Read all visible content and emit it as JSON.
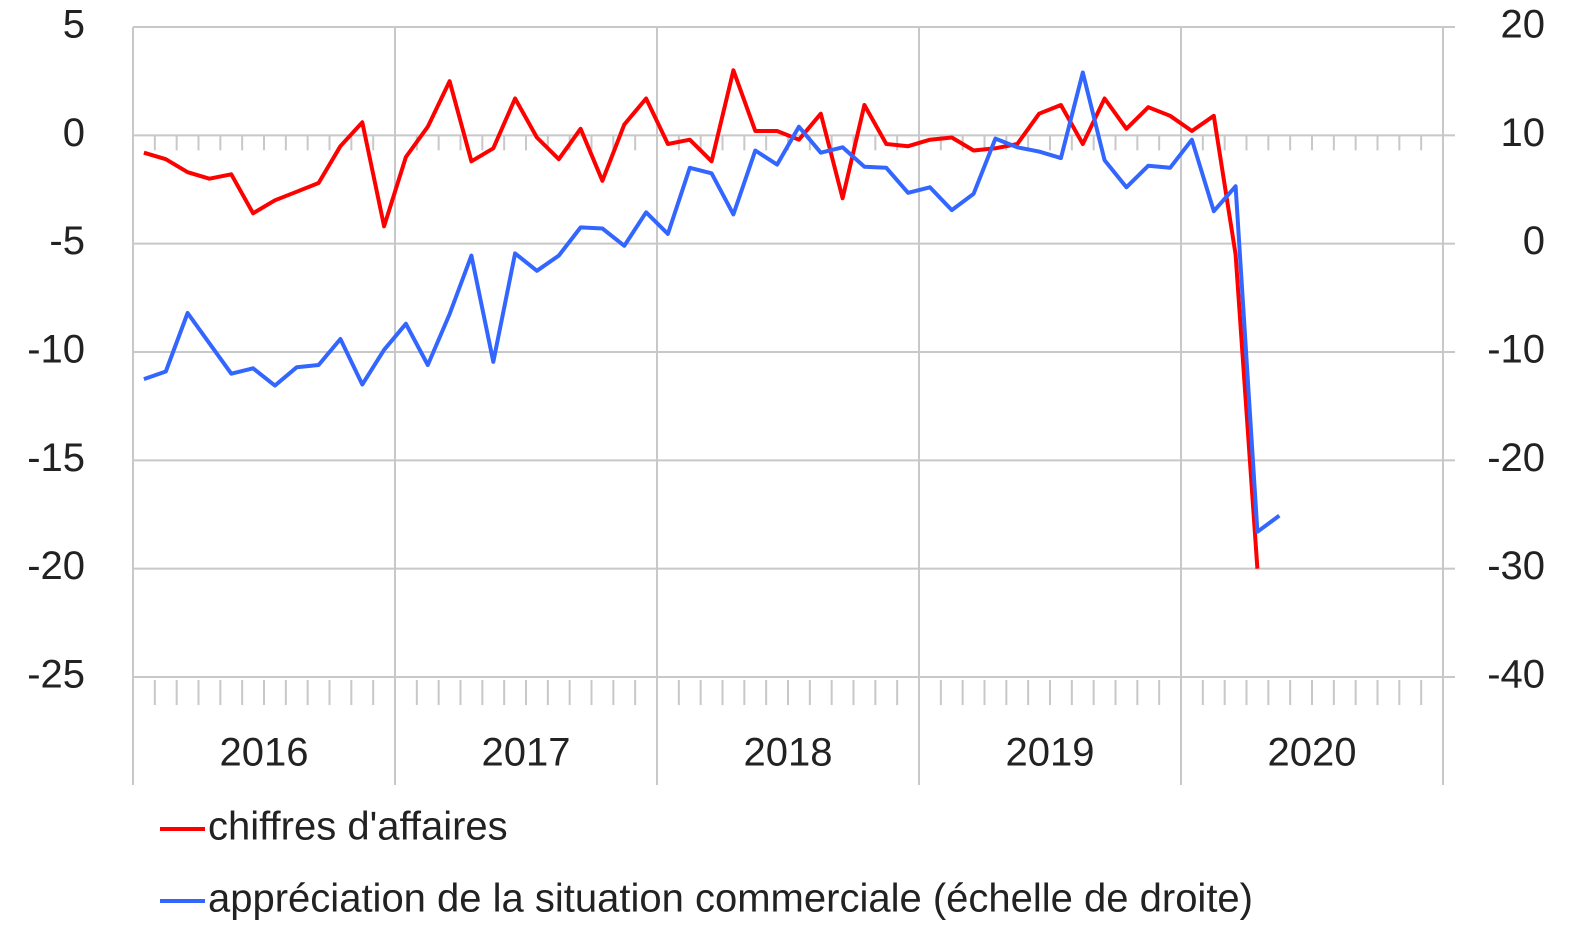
{
  "chart_data": {
    "type": "line",
    "categories": [
      null,
      null,
      null,
      null,
      null,
      null,
      "2016",
      null,
      null,
      null,
      null,
      null,
      null,
      null,
      null,
      null,
      null,
      null,
      "2017",
      null,
      null,
      null,
      null,
      null,
      null,
      null,
      null,
      null,
      null,
      null,
      "2018",
      null,
      null,
      null,
      null,
      null,
      null,
      null,
      null,
      null,
      null,
      null,
      "2019",
      null,
      null,
      null,
      null,
      null,
      null,
      null,
      null,
      null,
      null,
      null,
      "2020",
      null,
      null,
      null,
      null,
      null
    ],
    "series": [
      {
        "name": "chiffres d'affaires",
        "color": "#ff0000",
        "axis": "y",
        "values": [
          -0.8,
          -1.1,
          -1.7,
          -2.0,
          -1.8,
          -3.6,
          -3.0,
          -2.6,
          -2.2,
          -0.5,
          0.6,
          -4.2,
          -1.0,
          0.4,
          2.5,
          -1.2,
          -0.6,
          1.7,
          -0.1,
          -1.1,
          0.3,
          -2.1,
          0.5,
          1.7,
          -0.4,
          -0.2,
          -1.2,
          3.0,
          0.2,
          0.2,
          -0.2,
          1.0,
          -2.9,
          1.4,
          -0.4,
          -0.5,
          -0.2,
          -0.1,
          -0.7,
          -0.6,
          -0.4,
          1.0,
          1.4,
          -0.4,
          1.7,
          0.3,
          1.3,
          0.9,
          0.2,
          0.9,
          -5.5,
          -20,
          null,
          null,
          null,
          null,
          null,
          null,
          null,
          null
        ]
      },
      {
        "name": "appréciation de la situation commerciale (échelle de droite)",
        "color": "#3366ff",
        "axis": "y2",
        "values": [
          -12.5,
          -11.8,
          -6.4,
          -9.2,
          -12.0,
          -11.5,
          -13.1,
          -11.4,
          -11.2,
          -8.8,
          -13.0,
          -9.8,
          -7.4,
          -11.2,
          -6.5,
          -1.1,
          -10.9,
          -0.9,
          -2.5,
          -1.1,
          1.5,
          1.4,
          -0.2,
          2.9,
          0.9,
          7.0,
          6.5,
          2.7,
          8.6,
          7.3,
          10.8,
          8.4,
          8.9,
          7.1,
          7.0,
          4.7,
          5.2,
          3.1,
          4.6,
          9.7,
          8.9,
          8.5,
          7.9,
          15.8,
          7.7,
          5.2,
          7.2,
          7.0,
          9.6,
          3.0,
          5.3,
          -26.6,
          -25.1,
          null,
          null,
          null,
          null,
          null,
          null,
          null
        ]
      }
    ],
    "ylim": [
      -25,
      5
    ],
    "yticks": [
      -25,
      -20,
      -15,
      -10,
      -5,
      0,
      5
    ],
    "y2lim": [
      -40,
      20
    ],
    "y2ticks": [
      -40,
      -30,
      -20,
      -10,
      0,
      10,
      20
    ],
    "grid": true
  }
}
